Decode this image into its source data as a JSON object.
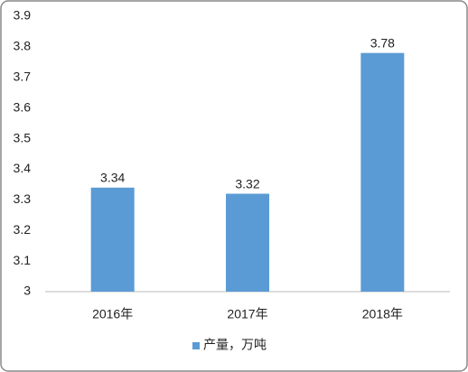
{
  "chart_data": {
    "type": "bar",
    "categories": [
      "2016年",
      "2017年",
      "2018年"
    ],
    "series": [
      {
        "name": "产量，万吨",
        "color": "#5b9bd5",
        "values": [
          3.34,
          3.32,
          3.78
        ]
      }
    ],
    "ylim": [
      3,
      3.9
    ],
    "yticks": [
      3,
      3.1,
      3.2,
      3.3,
      3.4,
      3.5,
      3.6,
      3.7,
      3.8,
      3.9
    ],
    "grid": false,
    "legend": "bottom"
  }
}
